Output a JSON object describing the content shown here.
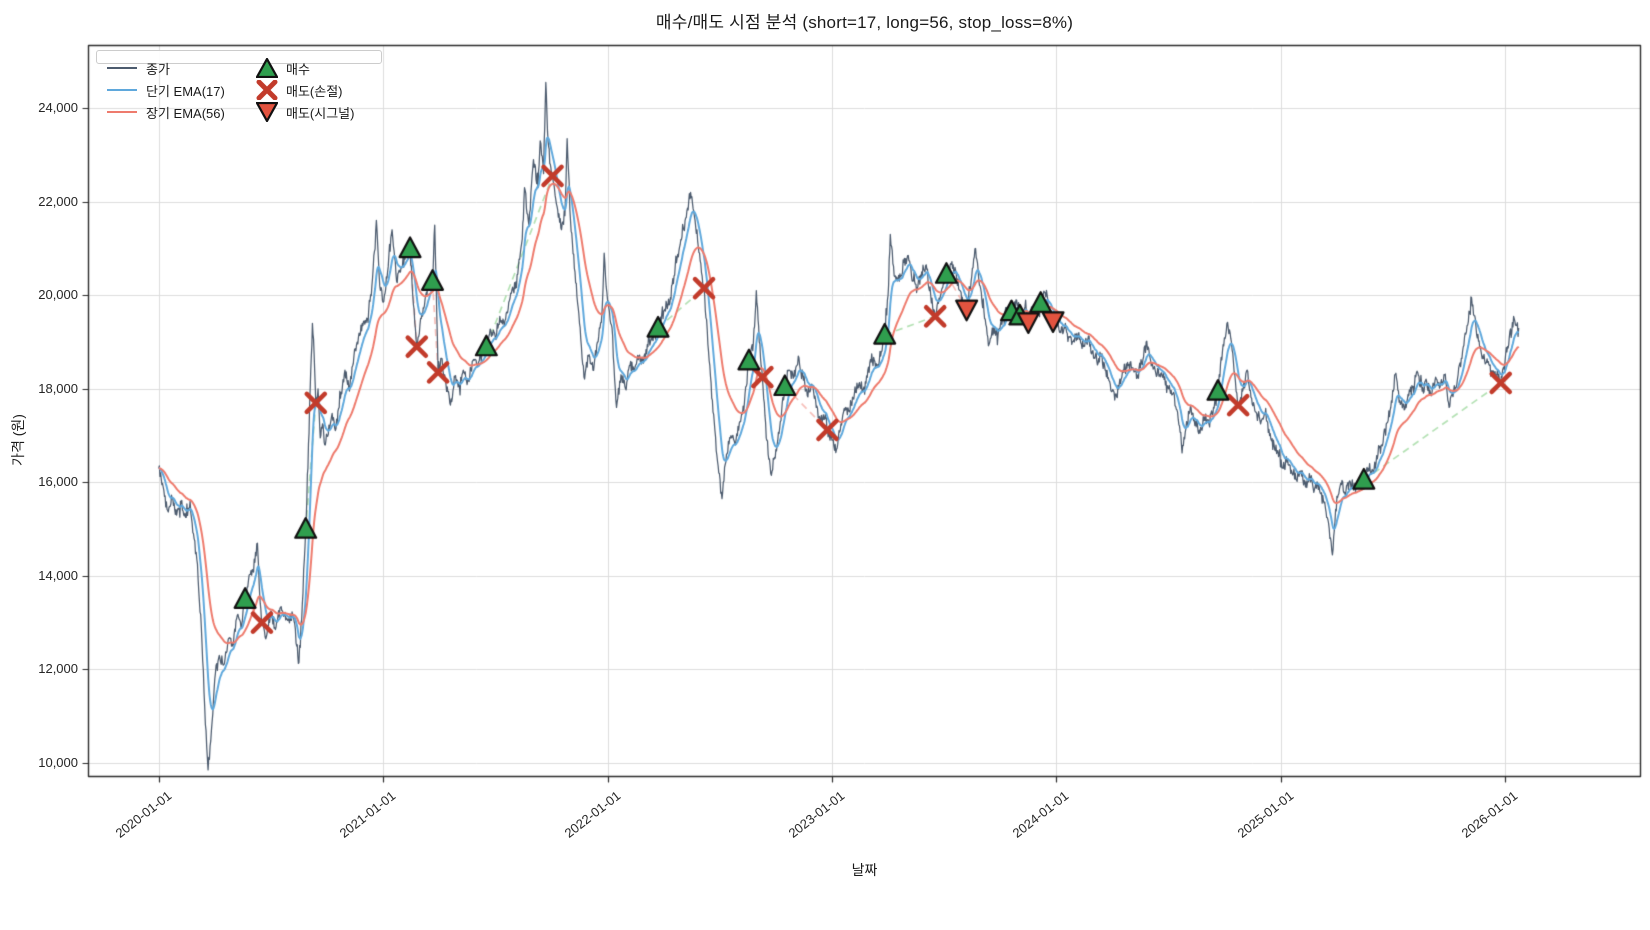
{
  "chart_data": {
    "type": "line",
    "title": "매수/매도 시점 분석 (short=17, long=56, stop_loss=8%)",
    "xlabel": "날짜",
    "ylabel": "가격 (원)",
    "grid": true,
    "legend_position": "upper left",
    "colors": {
      "close": "#4c5b6e",
      "ema_short": "#5fa8dc",
      "ema_long": "#ee7b6d",
      "buy": "#2f9e4e",
      "sell_stop": "#c23b2b",
      "sell_signal": "#e2533f",
      "marker_edge": "#111111",
      "grid": "#dcdcdc",
      "spine": "#2b2b2b",
      "trade_win": "rgba(130,205,130,0.6)",
      "trade_loss": "rgba(240,150,140,0.6)"
    },
    "legend": {
      "close": "종가",
      "ema_short": "단기 EMA(17)",
      "ema_long": "장기 EMA(56)",
      "buy": "매수",
      "sell_stop": "매도(손절)",
      "sell_signal": "매도(시그널)"
    },
    "ema_short_span": 17,
    "ema_long_span": 56,
    "x_ticks": [
      {
        "t": 0,
        "label": "2020-01-01"
      },
      {
        "t": 1,
        "label": "2021-01-01"
      },
      {
        "t": 2,
        "label": "2022-01-01"
      },
      {
        "t": 3,
        "label": "2023-01-01"
      },
      {
        "t": 4,
        "label": "2024-01-01"
      },
      {
        "t": 5,
        "label": "2025-01-01"
      },
      {
        "t": 6,
        "label": "2026-01-01"
      }
    ],
    "y_ticks": [
      {
        "v": 10000,
        "label": "10,000"
      },
      {
        "v": 12000,
        "label": "12,000"
      },
      {
        "v": 14000,
        "label": "14,000"
      },
      {
        "v": 16000,
        "label": "16,000"
      },
      {
        "v": 18000,
        "label": "18,000"
      },
      {
        "v": 20000,
        "label": "20,000"
      },
      {
        "v": 22000,
        "label": "22,000"
      },
      {
        "v": 24000,
        "label": "24,000"
      }
    ],
    "xlim_years_from_2020": [
      -0.315,
      6.605
    ],
    "ylim": [
      9700,
      25350
    ],
    "close": [
      [
        0.0,
        16300
      ],
      [
        0.02,
        15900
      ],
      [
        0.04,
        15400
      ],
      [
        0.06,
        15650
      ],
      [
        0.08,
        15300
      ],
      [
        0.1,
        15550
      ],
      [
        0.12,
        15250
      ],
      [
        0.14,
        15600
      ],
      [
        0.155,
        14900
      ],
      [
        0.17,
        14350
      ],
      [
        0.19,
        12900
      ],
      [
        0.205,
        11200
      ],
      [
        0.22,
        9850
      ],
      [
        0.235,
        10700
      ],
      [
        0.25,
        11800
      ],
      [
        0.27,
        12300
      ],
      [
        0.29,
        12100
      ],
      [
        0.31,
        12650
      ],
      [
        0.33,
        12500
      ],
      [
        0.35,
        13150
      ],
      [
        0.37,
        12950
      ],
      [
        0.385,
        13500
      ],
      [
        0.4,
        13900
      ],
      [
        0.42,
        14100
      ],
      [
        0.44,
        14700
      ],
      [
        0.45,
        13600
      ],
      [
        0.46,
        13000
      ],
      [
        0.48,
        12700
      ],
      [
        0.5,
        13250
      ],
      [
        0.52,
        12850
      ],
      [
        0.54,
        13300
      ],
      [
        0.56,
        13200
      ],
      [
        0.58,
        13050
      ],
      [
        0.6,
        13150
      ],
      [
        0.615,
        12500
      ],
      [
        0.625,
        12150
      ],
      [
        0.64,
        13400
      ],
      [
        0.655,
        15000
      ],
      [
        0.665,
        16300
      ],
      [
        0.675,
        18000
      ],
      [
        0.685,
        19400
      ],
      [
        0.695,
        18400
      ],
      [
        0.7,
        17700
      ],
      [
        0.71,
        18000
      ],
      [
        0.72,
        16950
      ],
      [
        0.73,
        17250
      ],
      [
        0.74,
        16800
      ],
      [
        0.75,
        17000
      ],
      [
        0.77,
        17400
      ],
      [
        0.79,
        17150
      ],
      [
        0.81,
        17800
      ],
      [
        0.83,
        18400
      ],
      [
        0.85,
        17950
      ],
      [
        0.87,
        18700
      ],
      [
        0.89,
        19100
      ],
      [
        0.91,
        19350
      ],
      [
        0.93,
        19500
      ],
      [
        0.95,
        20200
      ],
      [
        0.97,
        21600
      ],
      [
        0.985,
        20200
      ],
      [
        1.0,
        19850
      ],
      [
        1.02,
        20500
      ],
      [
        1.04,
        21400
      ],
      [
        1.06,
        20300
      ],
      [
        1.08,
        20600
      ],
      [
        1.1,
        20850
      ],
      [
        1.12,
        21000
      ],
      [
        1.135,
        19800
      ],
      [
        1.15,
        18900
      ],
      [
        1.17,
        19500
      ],
      [
        1.19,
        20000
      ],
      [
        1.21,
        20400
      ],
      [
        1.22,
        20300
      ],
      [
        1.23,
        21500
      ],
      [
        1.245,
        18350
      ],
      [
        1.26,
        18650
      ],
      [
        1.28,
        18100
      ],
      [
        1.3,
        17650
      ],
      [
        1.32,
        18250
      ],
      [
        1.34,
        18050
      ],
      [
        1.36,
        18350
      ],
      [
        1.38,
        18200
      ],
      [
        1.4,
        18600
      ],
      [
        1.42,
        18500
      ],
      [
        1.44,
        18750
      ],
      [
        1.46,
        18900
      ],
      [
        1.48,
        19250
      ],
      [
        1.5,
        19100
      ],
      [
        1.52,
        19550
      ],
      [
        1.54,
        19350
      ],
      [
        1.56,
        19850
      ],
      [
        1.58,
        20100
      ],
      [
        1.6,
        20450
      ],
      [
        1.62,
        21200
      ],
      [
        1.63,
        22300
      ],
      [
        1.65,
        21500
      ],
      [
        1.67,
        22900
      ],
      [
        1.69,
        22300
      ],
      [
        1.7,
        23300
      ],
      [
        1.715,
        22600
      ],
      [
        1.725,
        24550
      ],
      [
        1.735,
        23300
      ],
      [
        1.745,
        22800
      ],
      [
        1.755,
        22550
      ],
      [
        1.775,
        21900
      ],
      [
        1.795,
        21400
      ],
      [
        1.81,
        21700
      ],
      [
        1.82,
        23350
      ],
      [
        1.835,
        21600
      ],
      [
        1.855,
        20500
      ],
      [
        1.875,
        19400
      ],
      [
        1.895,
        18250
      ],
      [
        1.915,
        18700
      ],
      [
        1.935,
        18400
      ],
      [
        1.955,
        19000
      ],
      [
        1.975,
        19600
      ],
      [
        1.985,
        20900
      ],
      [
        2.0,
        19900
      ],
      [
        2.02,
        19300
      ],
      [
        2.04,
        17600
      ],
      [
        2.06,
        18300
      ],
      [
        2.08,
        18000
      ],
      [
        2.1,
        18500
      ],
      [
        2.12,
        18400
      ],
      [
        2.14,
        18700
      ],
      [
        2.16,
        18550
      ],
      [
        2.18,
        18900
      ],
      [
        2.2,
        19100
      ],
      [
        2.225,
        19300
      ],
      [
        2.25,
        19650
      ],
      [
        2.28,
        19950
      ],
      [
        2.31,
        20800
      ],
      [
        2.34,
        21400
      ],
      [
        2.37,
        22200
      ],
      [
        2.39,
        21600
      ],
      [
        2.41,
        20900
      ],
      [
        2.43,
        20150
      ],
      [
        2.45,
        18800
      ],
      [
        2.47,
        17500
      ],
      [
        2.49,
        16450
      ],
      [
        2.51,
        15650
      ],
      [
        2.53,
        16600
      ],
      [
        2.55,
        17000
      ],
      [
        2.57,
        16800
      ],
      [
        2.59,
        17300
      ],
      [
        2.61,
        17700
      ],
      [
        2.63,
        18600
      ],
      [
        2.65,
        19000
      ],
      [
        2.663,
        20100
      ],
      [
        2.676,
        19000
      ],
      [
        2.69,
        18250
      ],
      [
        2.71,
        16900
      ],
      [
        2.73,
        16150
      ],
      [
        2.75,
        16700
      ],
      [
        2.77,
        17300
      ],
      [
        2.79,
        18050
      ],
      [
        2.81,
        18400
      ],
      [
        2.83,
        18250
      ],
      [
        2.85,
        18700
      ],
      [
        2.87,
        18300
      ],
      [
        2.89,
        17850
      ],
      [
        2.91,
        18100
      ],
      [
        2.93,
        17600
      ],
      [
        2.95,
        17350
      ],
      [
        2.97,
        17450
      ],
      [
        2.98,
        17120
      ],
      [
        3.0,
        16900
      ],
      [
        3.02,
        16700
      ],
      [
        3.04,
        17250
      ],
      [
        3.06,
        17600
      ],
      [
        3.08,
        17500
      ],
      [
        3.1,
        17900
      ],
      [
        3.12,
        18100
      ],
      [
        3.14,
        18000
      ],
      [
        3.16,
        18400
      ],
      [
        3.18,
        18600
      ],
      [
        3.2,
        18500
      ],
      [
        3.22,
        18800
      ],
      [
        3.235,
        19150
      ],
      [
        3.25,
        20000
      ],
      [
        3.26,
        21300
      ],
      [
        3.28,
        20400
      ],
      [
        3.3,
        20300
      ],
      [
        3.32,
        20700
      ],
      [
        3.34,
        20850
      ],
      [
        3.36,
        20300
      ],
      [
        3.38,
        20150
      ],
      [
        3.4,
        20500
      ],
      [
        3.42,
        20650
      ],
      [
        3.44,
        20000
      ],
      [
        3.46,
        19550
      ],
      [
        3.48,
        19900
      ],
      [
        3.51,
        20450
      ],
      [
        3.54,
        20650
      ],
      [
        3.57,
        20100
      ],
      [
        3.6,
        19700
      ],
      [
        3.62,
        20300
      ],
      [
        3.64,
        21000
      ],
      [
        3.66,
        20200
      ],
      [
        3.68,
        19500
      ],
      [
        3.7,
        18950
      ],
      [
        3.72,
        19300
      ],
      [
        3.74,
        19150
      ],
      [
        3.76,
        19500
      ],
      [
        3.78,
        19700
      ],
      [
        3.8,
        19650
      ],
      [
        3.82,
        19900
      ],
      [
        3.84,
        19500
      ],
      [
        3.86,
        19750
      ],
      [
        3.875,
        19430
      ],
      [
        3.9,
        19800
      ],
      [
        3.92,
        19600
      ],
      [
        3.93,
        19830
      ],
      [
        3.95,
        20050
      ],
      [
        3.97,
        19700
      ],
      [
        3.985,
        19450
      ],
      [
        4.0,
        19400
      ],
      [
        4.02,
        19200
      ],
      [
        4.04,
        19400
      ],
      [
        4.06,
        19100
      ],
      [
        4.08,
        19000
      ],
      [
        4.1,
        19200
      ],
      [
        4.12,
        18900
      ],
      [
        4.14,
        19050
      ],
      [
        4.16,
        18800
      ],
      [
        4.18,
        18600
      ],
      [
        4.2,
        18700
      ],
      [
        4.22,
        18400
      ],
      [
        4.24,
        18100
      ],
      [
        4.26,
        17760
      ],
      [
        4.28,
        18100
      ],
      [
        4.3,
        18350
      ],
      [
        4.32,
        18500
      ],
      [
        4.34,
        18450
      ],
      [
        4.36,
        18300
      ],
      [
        4.38,
        18550
      ],
      [
        4.4,
        19000
      ],
      [
        4.42,
        18600
      ],
      [
        4.44,
        18400
      ],
      [
        4.46,
        18300
      ],
      [
        4.48,
        18200
      ],
      [
        4.5,
        18000
      ],
      [
        4.52,
        17900
      ],
      [
        4.54,
        17500
      ],
      [
        4.56,
        16630
      ],
      [
        4.58,
        17300
      ],
      [
        4.6,
        17600
      ],
      [
        4.62,
        17300
      ],
      [
        4.64,
        17050
      ],
      [
        4.66,
        17400
      ],
      [
        4.68,
        17250
      ],
      [
        4.7,
        17600
      ],
      [
        4.72,
        17950
      ],
      [
        4.74,
        18800
      ],
      [
        4.76,
        19400
      ],
      [
        4.78,
        19000
      ],
      [
        4.795,
        18300
      ],
      [
        4.81,
        17650
      ],
      [
        4.83,
        17950
      ],
      [
        4.85,
        18400
      ],
      [
        4.87,
        17800
      ],
      [
        4.89,
        17500
      ],
      [
        4.91,
        17250
      ],
      [
        4.93,
        17450
      ],
      [
        4.95,
        17000
      ],
      [
        4.97,
        16800
      ],
      [
        4.99,
        16550
      ],
      [
        5.01,
        16300
      ],
      [
        5.03,
        16500
      ],
      [
        5.05,
        16200
      ],
      [
        5.07,
        16050
      ],
      [
        5.09,
        16250
      ],
      [
        5.11,
        15900
      ],
      [
        5.13,
        16100
      ],
      [
        5.15,
        15850
      ],
      [
        5.17,
        15950
      ],
      [
        5.19,
        15600
      ],
      [
        5.21,
        15200
      ],
      [
        5.23,
        14450
      ],
      [
        5.25,
        15700
      ],
      [
        5.27,
        15950
      ],
      [
        5.29,
        15800
      ],
      [
        5.31,
        16000
      ],
      [
        5.33,
        15900
      ],
      [
        5.35,
        16000
      ],
      [
        5.37,
        16050
      ],
      [
        5.39,
        16300
      ],
      [
        5.41,
        16250
      ],
      [
        5.43,
        16500
      ],
      [
        5.45,
        16800
      ],
      [
        5.47,
        17250
      ],
      [
        5.49,
        17600
      ],
      [
        5.51,
        18300
      ],
      [
        5.53,
        17750
      ],
      [
        5.55,
        17550
      ],
      [
        5.57,
        17850
      ],
      [
        5.59,
        18050
      ],
      [
        5.61,
        18350
      ],
      [
        5.63,
        17950
      ],
      [
        5.65,
        18150
      ],
      [
        5.67,
        17850
      ],
      [
        5.69,
        18250
      ],
      [
        5.71,
        18050
      ],
      [
        5.73,
        18300
      ],
      [
        5.75,
        17600
      ],
      [
        5.77,
        17950
      ],
      [
        5.79,
        18300
      ],
      [
        5.81,
        18800
      ],
      [
        5.83,
        19350
      ],
      [
        5.85,
        19950
      ],
      [
        5.87,
        19300
      ],
      [
        5.9,
        18700
      ],
      [
        5.93,
        18500
      ],
      [
        5.96,
        18300
      ],
      [
        5.98,
        18150
      ],
      [
        6.01,
        18900
      ],
      [
        6.04,
        19500
      ],
      [
        6.06,
        19300
      ]
    ],
    "markers": {
      "buy": [
        [
          0.385,
          13500
        ],
        [
          0.655,
          15000
        ],
        [
          1.12,
          21000
        ],
        [
          1.22,
          20300
        ],
        [
          1.46,
          18900
        ],
        [
          2.225,
          19300
        ],
        [
          2.63,
          18600
        ],
        [
          2.79,
          18050
        ],
        [
          3.235,
          19150
        ],
        [
          3.51,
          20450
        ],
        [
          3.8,
          19650
        ],
        [
          3.837,
          19560
        ],
        [
          3.93,
          19830
        ],
        [
          4.72,
          17950
        ],
        [
          5.37,
          16050
        ]
      ],
      "sell_stop": [
        [
          0.46,
          13000
        ],
        [
          0.7,
          17700
        ],
        [
          1.15,
          18900
        ],
        [
          1.245,
          18350
        ],
        [
          1.755,
          22550
        ],
        [
          2.43,
          20150
        ],
        [
          2.69,
          18250
        ],
        [
          2.98,
          17120
        ],
        [
          3.46,
          19550
        ],
        [
          4.81,
          17650
        ],
        [
          5.98,
          18124
        ]
      ],
      "sell_signal": [
        [
          3.6,
          19700
        ],
        [
          3.875,
          19430
        ],
        [
          3.985,
          19450
        ]
      ]
    },
    "trades": [
      [
        0.385,
        13500,
        0.46,
        13000,
        "loss"
      ],
      [
        0.655,
        15000,
        0.7,
        17700,
        "win"
      ],
      [
        1.12,
        21000,
        1.15,
        18900,
        "loss"
      ],
      [
        1.22,
        20300,
        1.245,
        18350,
        "loss"
      ],
      [
        1.46,
        18900,
        1.755,
        22550,
        "win"
      ],
      [
        2.225,
        19300,
        2.43,
        20150,
        "win"
      ],
      [
        2.63,
        18600,
        2.69,
        18250,
        "loss"
      ],
      [
        2.79,
        18050,
        2.98,
        17120,
        "loss"
      ],
      [
        3.235,
        19150,
        3.46,
        19550,
        "win"
      ],
      [
        3.51,
        20450,
        3.6,
        19700,
        "loss"
      ],
      [
        3.8,
        19650,
        3.875,
        19430,
        "loss"
      ],
      [
        3.837,
        19560,
        3.875,
        19430,
        "loss"
      ],
      [
        3.93,
        19830,
        3.985,
        19450,
        "loss"
      ],
      [
        4.72,
        17950,
        4.81,
        17650,
        "loss"
      ],
      [
        5.37,
        16050,
        5.98,
        18124,
        "win"
      ]
    ]
  }
}
